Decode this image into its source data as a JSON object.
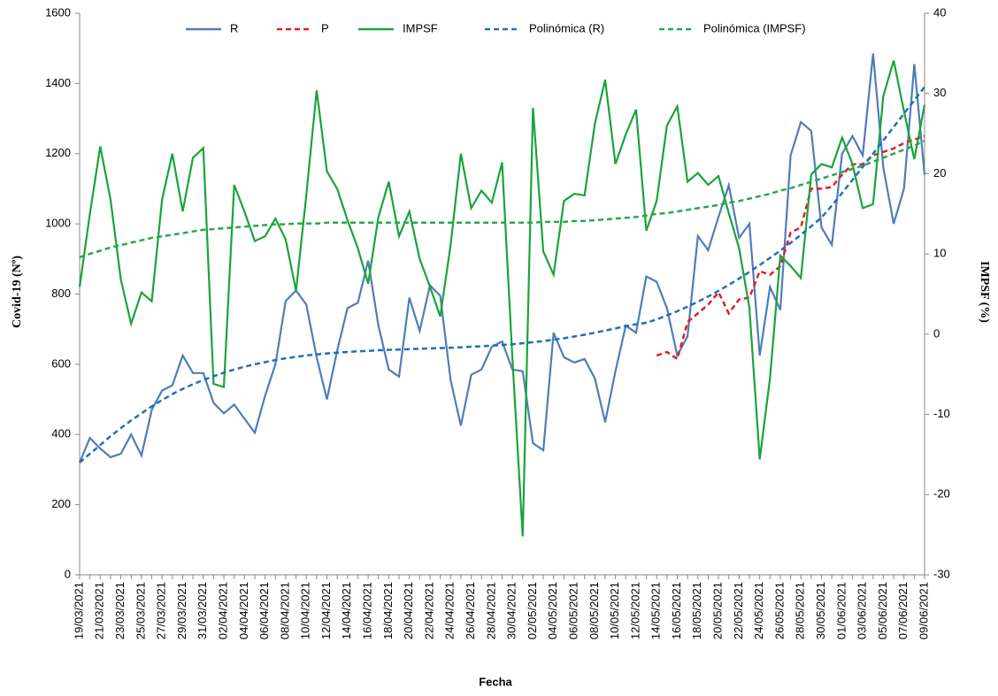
{
  "chart_data": {
    "type": "line",
    "categories": [
      "19/03/2021",
      null,
      "21/03/2021",
      null,
      "23/03/2021",
      null,
      "25/03/2021",
      null,
      "27/03/2021",
      null,
      "29/03/2021",
      null,
      "31/03/2021",
      null,
      "02/04/2021",
      null,
      "04/04/2021",
      null,
      "06/04/2021",
      null,
      "08/04/2021",
      null,
      "10/04/2021",
      null,
      "12/04/2021",
      null,
      "14/04/2021",
      null,
      "16/04/2021",
      null,
      "18/04/2021",
      null,
      "20/04/2021",
      null,
      "22/04/2021",
      null,
      "24/04/2021",
      null,
      "26/04/2021",
      null,
      "28/04/2021",
      null,
      "30/04/2021",
      null,
      "02/05/2021",
      null,
      "04/05/2021",
      null,
      "06/05/2021",
      null,
      "08/05/2021",
      null,
      "10/05/2021",
      null,
      "12/05/2021",
      null,
      "14/05/2021",
      null,
      "16/05/2021",
      null,
      "18/05/2021",
      null,
      "20/05/2021",
      null,
      "22/05/2021",
      null,
      "24/05/2021",
      null,
      "26/05/2021",
      null,
      "28/05/2021",
      null,
      "30/05/2021",
      null,
      "01/06/2021",
      null,
      "03/06/2021",
      null,
      "05/06/2021",
      null,
      "07/06/2021",
      null,
      "09/06/2021"
    ],
    "series": [
      {
        "name": "R",
        "color": "#4f7db8",
        "style": "solid",
        "axis": "y",
        "values": [
          320,
          390,
          360,
          335,
          345,
          400,
          340,
          470,
          525,
          540,
          625,
          575,
          575,
          490,
          460,
          485,
          445,
          405,
          510,
          600,
          780,
          810,
          770,
          620,
          500,
          640,
          760,
          775,
          895,
          710,
          585,
          565,
          790,
          695,
          825,
          795,
          555,
          425,
          570,
          585,
          650,
          665,
          585,
          580,
          375,
          355,
          690,
          620,
          605,
          615,
          560,
          435,
          580,
          710,
          690,
          850,
          835,
          760,
          625,
          680,
          965,
          925,
          1020,
          1110,
          960,
          1000,
          625,
          820,
          755,
          1195,
          1290,
          1265,
          990,
          940,
          1200,
          1250,
          1195,
          1485,
          1160,
          1000,
          1100,
          1455,
          1140
        ]
      },
      {
        "name": "P",
        "color": "#e02020",
        "style": "dashed",
        "axis": "y",
        "values": [
          null,
          null,
          null,
          null,
          null,
          null,
          null,
          null,
          null,
          null,
          null,
          null,
          null,
          null,
          null,
          null,
          null,
          null,
          null,
          null,
          null,
          null,
          null,
          null,
          null,
          null,
          null,
          null,
          null,
          null,
          null,
          null,
          null,
          null,
          null,
          null,
          null,
          null,
          null,
          null,
          null,
          null,
          null,
          null,
          null,
          null,
          null,
          null,
          null,
          null,
          null,
          null,
          null,
          null,
          null,
          null,
          625,
          635,
          615,
          720,
          745,
          770,
          805,
          745,
          785,
          790,
          865,
          855,
          880,
          975,
          990,
          1100,
          1100,
          1105,
          1140,
          1170,
          1170,
          1195,
          1205,
          1215,
          1230,
          1240,
          1250
        ]
      },
      {
        "name": "IMPSF",
        "color": "#1aa33a",
        "style": "solid",
        "axis": "y2",
        "values": [
          5.9,
          15,
          23.4,
          16.8,
          6.8,
          1.3,
          5.2,
          4.1,
          16.8,
          22.5,
          15.3,
          22,
          23.2,
          -6.2,
          -6.6,
          18.6,
          15.3,
          11.6,
          12.2,
          14.4,
          11.8,
          5.4,
          17.3,
          30.4,
          20.3,
          18.1,
          14.2,
          10.7,
          6.3,
          14.6,
          19,
          12.2,
          15.3,
          9.4,
          5.9,
          2.2,
          11.1,
          22.5,
          15.7,
          17.9,
          16.4,
          21.4,
          -2.9,
          -25.2,
          28.2,
          10.3,
          7.4,
          16.6,
          17.5,
          17.3,
          26.2,
          31.7,
          21.2,
          24.9,
          28,
          12.9,
          16.6,
          26,
          28.4,
          19,
          20.1,
          18.6,
          19.7,
          15.1,
          10.7,
          3.3,
          -15.6,
          -5.5,
          9.8,
          8.5,
          7,
          19.9,
          21.2,
          20.8,
          24.5,
          21.2,
          15.7,
          16.2,
          29.7,
          34.1,
          27.8,
          21.8,
          28.6
        ]
      },
      {
        "name": "Polinómica (R)",
        "color": "#1f6fbf",
        "style": "dashed",
        "axis": "y",
        "values": [
          320,
          345,
          370,
          395,
          418,
          440,
          460,
          480,
          498,
          515,
          530,
          543,
          555,
          566,
          576,
          585,
          593,
          600,
          606,
          612,
          617,
          621,
          625,
          628,
          631,
          633,
          635,
          637,
          638,
          640,
          641,
          642,
          643,
          644,
          645,
          646,
          647,
          648,
          650,
          651,
          653,
          655,
          657,
          660,
          663,
          666,
          670,
          674,
          679,
          684,
          690,
          696,
          702,
          709,
          714,
          718,
          728,
          739,
          751,
          764,
          778,
          793,
          809,
          826,
          844,
          863,
          883,
          903,
          924,
          946,
          969,
          993,
          1018,
          1052,
          1088,
          1125,
          1162,
          1200,
          1238,
          1276,
          1314,
          1352,
          1390
        ]
      },
      {
        "name": "Polinómica (IMPSF)",
        "color": "#2aa84a",
        "style": "dashed",
        "axis": "y2",
        "values": [
          9.6,
          10,
          10.4,
          10.8,
          11.1,
          11.4,
          11.7,
          12,
          12.2,
          12.4,
          12.6,
          12.8,
          13,
          13.1,
          13.2,
          13.3,
          13.4,
          13.5,
          13.6,
          13.7,
          13.7,
          13.8,
          13.8,
          13.8,
          13.9,
          13.9,
          13.9,
          13.9,
          13.9,
          13.9,
          13.9,
          13.9,
          13.9,
          13.9,
          13.9,
          13.9,
          13.9,
          13.9,
          13.9,
          13.9,
          13.9,
          13.9,
          13.9,
          13.9,
          13.9,
          14,
          14,
          14,
          14.1,
          14.1,
          14.2,
          14.3,
          14.4,
          14.5,
          14.6,
          14.8,
          15,
          15.1,
          15.3,
          15.5,
          15.7,
          15.9,
          16.1,
          16.4,
          16.6,
          16.9,
          17.2,
          17.5,
          17.9,
          18.2,
          18.6,
          19,
          19.4,
          19.8,
          20.2,
          20.6,
          21,
          21.5,
          22,
          22.5,
          23,
          23.5,
          24.1
        ]
      }
    ],
    "xlabel": "Fecha",
    "ylabel": "Covid-19  (Nº)",
    "y2label": "IMPSF  (%)",
    "ylim": [
      0,
      1600
    ],
    "yticks": [
      0,
      200,
      400,
      600,
      800,
      1000,
      1200,
      1400,
      1600
    ],
    "y2lim": [
      -30,
      40
    ],
    "y2ticks": [
      -30,
      -20,
      -10,
      0,
      10,
      20,
      30,
      40
    ],
    "legend": "top",
    "grid": false
  }
}
